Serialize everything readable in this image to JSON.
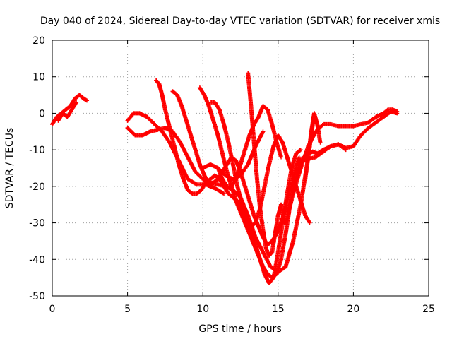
{
  "chart_data": {
    "type": "scatter",
    "title": "Day 040 of 2024, Sidereal Day-to-day VTEC variation (SDTVAR) for receiver xmis",
    "xlabel": "GPS time / hours",
    "ylabel": "SDTVAR / TECUs",
    "xlim": [
      0,
      25
    ],
    "ylim": [
      -50,
      20
    ],
    "xticks": [
      "0",
      "5",
      "10",
      "15",
      "20",
      "25"
    ],
    "yticks": [
      "20",
      "10",
      "0",
      "-10",
      "-20",
      "-30",
      "-40",
      "-50"
    ],
    "grid": true,
    "marker": "plus",
    "color": "#ff0000",
    "series": [
      {
        "x": [
          0.0,
          0.3,
          0.6,
          0.9,
          1.2,
          1.5,
          1.8,
          2.1,
          2.3
        ],
        "y": [
          -3,
          -1,
          0,
          1,
          2,
          4,
          5,
          4,
          3.5
        ]
      },
      {
        "x": [
          0.4,
          0.7,
          1.0,
          1.3,
          1.6
        ],
        "y": [
          -2,
          0,
          -1,
          1,
          3
        ]
      },
      {
        "x": [
          5.0,
          5.4,
          5.8,
          6.3,
          6.8,
          7.3,
          7.8,
          8.4,
          9.0,
          9.6,
          10.2,
          10.8,
          11.4
        ],
        "y": [
          -2,
          0,
          0,
          -1,
          -3,
          -5,
          -8,
          -13,
          -18,
          -19.5,
          -19.5,
          -20.5,
          -22
        ]
      },
      {
        "x": [
          5.0,
          5.5,
          6.0,
          6.5,
          7.0,
          7.5,
          8.0,
          8.5,
          9.0,
          9.5,
          10.0,
          10.5,
          11.0,
          11.5,
          12.0,
          12.5,
          13.0,
          13.5,
          14.0,
          14.5,
          15.0,
          15.5,
          16.0,
          16.5,
          17.0,
          17.4
        ],
        "y": [
          -4,
          -6,
          -6,
          -5,
          -4.5,
          -4,
          -5,
          -8,
          -12,
          -16,
          -18,
          -19,
          -19.5,
          -20,
          -21,
          -23,
          -28,
          -34,
          -38,
          -42,
          -43.5,
          -42,
          -35,
          -25,
          -12,
          0
        ]
      },
      {
        "x": [
          6.9,
          7.1,
          7.3,
          7.5,
          7.8,
          8.1,
          8.4,
          8.7,
          9.0,
          9.3,
          9.6,
          9.9,
          10.2,
          10.5,
          10.8,
          11.1,
          11.4,
          11.7,
          12.0,
          12.3,
          12.6,
          12.9,
          13.2,
          13.5,
          13.8,
          14.1,
          14.4,
          14.7,
          15.0,
          15.3,
          15.6,
          15.9,
          16.2,
          16.5
        ],
        "y": [
          9,
          8,
          5,
          1,
          -4,
          -9,
          -14,
          -18,
          -21,
          -22,
          -22,
          -21,
          -19,
          -18,
          -17,
          -18,
          -20,
          -22,
          -23,
          -24,
          -26,
          -29,
          -32,
          -36,
          -40,
          -44,
          -46.5,
          -45,
          -38,
          -30,
          -22,
          -15,
          -11,
          -10
        ]
      },
      {
        "x": [
          8.0,
          8.3,
          8.6,
          8.9,
          9.2,
          9.5,
          9.8,
          10.1,
          10.4,
          10.7,
          11.0,
          11.3,
          11.6,
          11.9,
          12.2,
          12.5,
          12.8,
          13.1,
          13.4,
          13.7,
          14.0,
          14.3,
          14.6,
          14.9,
          15.2,
          15.5,
          15.8,
          16.1,
          16.4
        ],
        "y": [
          6,
          5,
          2,
          -2,
          -6,
          -10,
          -14,
          -17,
          -19,
          -19,
          -18,
          -16,
          -14,
          -12,
          -13,
          -16,
          -20,
          -24,
          -28,
          -31,
          -34,
          -36,
          -35,
          -33,
          -30,
          -26,
          -21,
          -16,
          -12
        ]
      },
      {
        "x": [
          9.8,
          10.1,
          10.4,
          10.7,
          11.0,
          11.3,
          11.6,
          11.9,
          12.2,
          12.5,
          12.8,
          13.1,
          13.4,
          13.7,
          14.0,
          14.3,
          14.6,
          14.9,
          15.2,
          15.5,
          15.8,
          16.1,
          16.4,
          16.7,
          17.0,
          17.3,
          17.6,
          18.0,
          18.5,
          19.0,
          19.5
        ],
        "y": [
          7,
          5,
          2,
          -2,
          -6,
          -11,
          -16,
          -20,
          -24,
          -27,
          -30,
          -33,
          -36,
          -39,
          -42,
          -44,
          -45,
          -44,
          -40,
          -33,
          -25,
          -19,
          -14,
          -12,
          -11,
          -10.5,
          -11,
          -10,
          -9,
          -8.5,
          -10
        ]
      },
      {
        "x": [
          10.5,
          10.8,
          11.1,
          11.4,
          11.7,
          12.0,
          12.3,
          12.6,
          12.9,
          13.2,
          13.5,
          13.8,
          14.1,
          14.4,
          14.7,
          15.0,
          15.3,
          15.6,
          15.9,
          16.2,
          16.5,
          16.8,
          17.1
        ],
        "y": [
          3,
          3,
          1,
          -3,
          -8,
          -14,
          -20,
          -25,
          -29,
          -31,
          -30,
          -26,
          -20,
          -14,
          -9,
          -6,
          -8,
          -12,
          -16,
          -20,
          -24,
          -28,
          -30
        ]
      },
      {
        "x": [
          13.0,
          13.2,
          13.4,
          13.6,
          13.8,
          14.0,
          14.2,
          14.4,
          14.6,
          14.8,
          15.0,
          15.2,
          15.4
        ],
        "y": [
          11,
          2,
          -8,
          -18,
          -26,
          -32,
          -37,
          -39,
          -38,
          -33,
          -28,
          -25,
          -30
        ]
      },
      {
        "x": [
          11.0,
          11.3,
          11.6,
          11.9,
          12.2,
          12.5,
          12.8,
          13.1,
          13.4,
          13.7,
          14.0,
          14.3,
          14.6,
          14.9,
          15.2
        ],
        "y": [
          -15,
          -18,
          -20,
          -20,
          -18,
          -14,
          -10,
          -6,
          -3,
          -1,
          2,
          1,
          -3,
          -8,
          -12
        ]
      },
      {
        "x": [
          10.0,
          10.5,
          11.0,
          11.5,
          12.0,
          12.5,
          13.0,
          13.5,
          14.0
        ],
        "y": [
          -15,
          -14,
          -15,
          -17,
          -18,
          -17,
          -14,
          -9,
          -5
        ]
      },
      {
        "x": [
          15.5,
          16.0,
          16.5,
          17.0,
          17.5,
          18.0,
          18.5,
          19.0,
          19.5,
          20.0,
          20.5,
          21.0,
          21.5,
          22.0,
          22.3,
          22.6,
          22.9
        ],
        "y": [
          -30,
          -22,
          -15,
          -9,
          -5,
          -3,
          -3,
          -3.5,
          -3.5,
          -3.5,
          -3,
          -2.5,
          -1,
          0,
          1,
          1,
          0.5
        ]
      },
      {
        "x": [
          16.5,
          17.0,
          17.5,
          18.0,
          18.5,
          19.0,
          19.5,
          20.0,
          20.5,
          21.0,
          21.5,
          22.0,
          22.5,
          22.9
        ],
        "y": [
          -13,
          -12.5,
          -12,
          -10.5,
          -9,
          -8.5,
          -9.5,
          -9,
          -6,
          -4,
          -2.5,
          -1,
          0.5,
          0
        ]
      },
      {
        "x": [
          16.8,
          17.0,
          17.2,
          17.4,
          17.6,
          17.8
        ],
        "y": [
          -18,
          -12,
          -5,
          0,
          -3,
          -8
        ]
      }
    ]
  }
}
